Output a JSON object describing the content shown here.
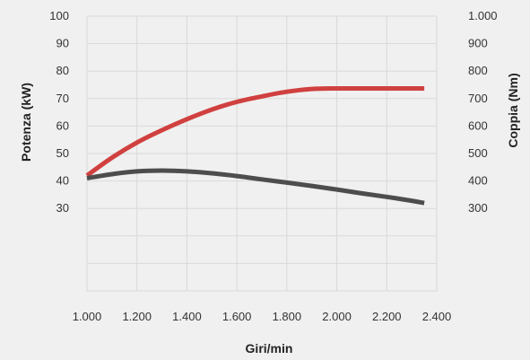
{
  "chart_data": {
    "type": "line",
    "xlabel": "Giri/min",
    "ylabel_left": "Potenza (kW)",
    "ylabel_right": "Coppia (Nm)",
    "x_ticks": [
      "1.000",
      "1.200",
      "1.400",
      "1.600",
      "1.800",
      "2.000",
      "2.200",
      "2.400"
    ],
    "y_left_ticks": [
      "100",
      "90",
      "80",
      "70",
      "60",
      "50",
      "40",
      "30"
    ],
    "y_right_ticks": [
      "1.000",
      "900",
      "800",
      "700",
      "600",
      "500",
      "400",
      "300"
    ],
    "xlim": [
      1000,
      2400
    ],
    "ylim_left": [
      0,
      100
    ],
    "ylim_right": [
      0,
      1000
    ],
    "grid": true,
    "series": [
      {
        "axis": "left",
        "color": "#d0403f",
        "x": [
          1000,
          1100,
          1200,
          1300,
          1400,
          1500,
          1600,
          1700,
          1800,
          1900,
          2000,
          2100,
          2200,
          2300,
          2350
        ],
        "y": [
          42,
          48.5,
          54,
          58.5,
          62.5,
          66,
          68.8,
          70.8,
          72.5,
          73.5,
          73.7,
          73.7,
          73.7,
          73.7,
          73.7
        ]
      },
      {
        "axis": "right",
        "color": "#4d4d4d",
        "x": [
          1000,
          1100,
          1200,
          1300,
          1400,
          1500,
          1600,
          1700,
          1800,
          1900,
          2000,
          2100,
          2200,
          2300,
          2350
        ],
        "y": [
          410,
          425,
          435,
          438,
          435,
          428,
          418,
          406,
          394,
          382,
          369,
          355,
          342,
          328,
          320
        ]
      }
    ]
  }
}
